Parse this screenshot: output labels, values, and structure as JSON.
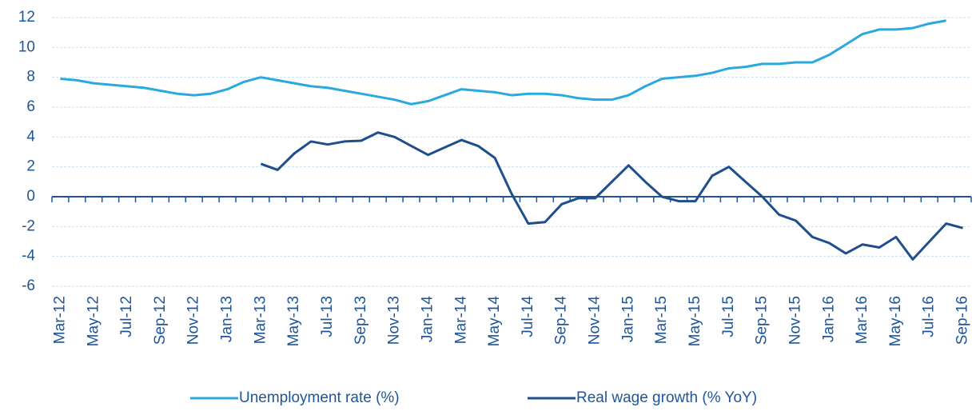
{
  "chart_data": {
    "type": "line",
    "categories": [
      "Mar-12",
      null,
      "May-12",
      null,
      "Jul-12",
      null,
      "Sep-12",
      null,
      "Nov-12",
      null,
      "Jan-13",
      null,
      "Mar-13",
      null,
      "May-13",
      null,
      "Jul-13",
      null,
      "Sep-13",
      null,
      "Nov-13",
      null,
      "Jan-14",
      null,
      "Mar-14",
      null,
      "May-14",
      null,
      "Jul-14",
      null,
      "Sep-14",
      null,
      "Nov-14",
      null,
      "Jan-15",
      null,
      "Mar-15",
      null,
      "May-15",
      null,
      "Jul-15",
      null,
      "Sep-15",
      null,
      "Nov-15",
      null,
      "Jan-16",
      null,
      "Mar-16",
      null,
      "May-16",
      null,
      "Jul-16",
      null,
      "Sep-16"
    ],
    "series": [
      {
        "name": "Unemployment rate (%)",
        "color": "#29a9e0",
        "values": [
          7.9,
          7.8,
          7.6,
          7.5,
          7.4,
          7.3,
          7.1,
          6.9,
          6.8,
          6.9,
          7.2,
          7.7,
          8.0,
          7.8,
          7.6,
          7.4,
          7.3,
          7.1,
          6.9,
          6.7,
          6.5,
          6.2,
          6.4,
          6.8,
          7.2,
          7.1,
          7.0,
          6.8,
          6.9,
          6.9,
          6.8,
          6.6,
          6.5,
          6.5,
          6.8,
          7.4,
          7.9,
          8.0,
          8.1,
          8.3,
          8.6,
          8.7,
          8.9,
          8.9,
          9.0,
          9.0,
          9.5,
          10.2,
          10.9,
          11.2,
          11.2,
          11.3,
          11.6,
          11.8,
          null
        ]
      },
      {
        "name": "Real wage growth (% YoY)",
        "color": "#1f4e8c",
        "values": [
          null,
          null,
          null,
          null,
          null,
          null,
          null,
          null,
          null,
          null,
          null,
          null,
          2.2,
          1.8,
          2.9,
          3.7,
          3.5,
          3.7,
          3.75,
          4.3,
          4.0,
          3.4,
          2.8,
          3.3,
          3.8,
          3.4,
          2.6,
          0.2,
          -1.8,
          -1.7,
          -0.5,
          -0.1,
          -0.1,
          1.0,
          2.1,
          1.0,
          0.0,
          -0.3,
          -0.3,
          1.4,
          2.0,
          1.0,
          0.0,
          -1.2,
          -1.6,
          -2.7,
          -3.1,
          -3.8,
          -3.2,
          -3.4,
          -2.7,
          -4.2,
          -3.0,
          -1.8,
          -2.1
        ]
      }
    ],
    "ylim": [
      -6,
      12
    ],
    "yticks": [
      -6,
      -4,
      -2,
      0,
      2,
      4,
      6,
      8,
      10,
      12
    ],
    "grid": true,
    "legend": "bottom"
  }
}
